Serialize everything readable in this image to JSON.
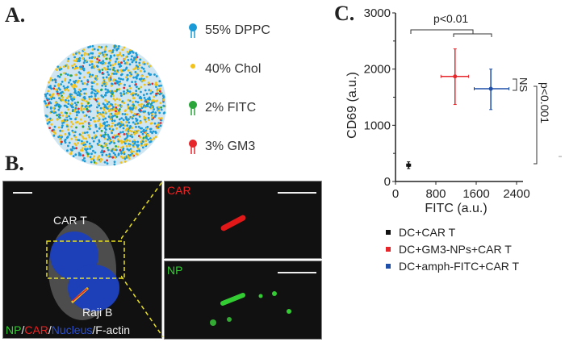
{
  "panel_a": {
    "label": "A.",
    "components": [
      {
        "text": "55% DPPC",
        "color": "#1a9ad6"
      },
      {
        "text": "40% Chol",
        "color": "#f2c21b"
      },
      {
        "text": "2% FITC",
        "color": "#2aa53a"
      },
      {
        "text": "3% GM3",
        "color": "#e5262b"
      }
    ]
  },
  "panel_b": {
    "label": "B.",
    "cell_top": "CAR T",
    "cell_bottom": "Raji B",
    "legend": {
      "np": "NP",
      "car": "CAR",
      "nucleus": "Nucleus",
      "factin": "F-actin",
      "sep": "/"
    },
    "inset_car": "CAR",
    "inset_np": "NP"
  },
  "panel_c": {
    "label": "C."
  },
  "chart_data": {
    "type": "scatter",
    "xlabel": "FITC (a.u.)",
    "ylabel": "CD69 (a.u.)",
    "xlim": [
      0,
      2400
    ],
    "ylim": [
      0,
      3000
    ],
    "xticks": [
      "0",
      "800",
      "1600",
      "2400"
    ],
    "yticks": [
      "0",
      "1000",
      "2000",
      "3000"
    ],
    "series": [
      {
        "name": "DC+CAR T",
        "color": "#111111",
        "x": 260,
        "y": 290,
        "xerr": [
          220,
          300
        ],
        "yerr": [
          230,
          350
        ]
      },
      {
        "name": "DC+GM3-NPs+CAR T",
        "color": "#e5262b",
        "x": 1180,
        "y": 1870,
        "xerr": [
          900,
          1450
        ],
        "yerr": [
          1370,
          2360
        ]
      },
      {
        "name": "DC+amph-FITC+CAR T",
        "color": "#1f4fa8",
        "x": 1890,
        "y": 1650,
        "xerr": [
          1560,
          2250
        ],
        "yerr": [
          1280,
          2000
        ]
      }
    ],
    "annotations": {
      "top": "p<0.01",
      "ns": "NS",
      "right": "p<0.001"
    },
    "legend_position": "bottom"
  }
}
